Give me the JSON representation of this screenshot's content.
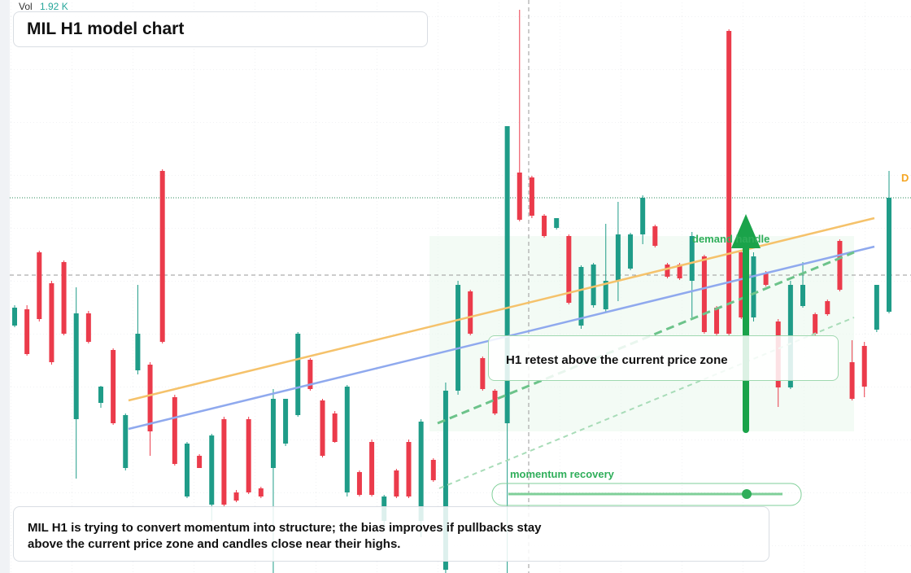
{
  "chart_data": {
    "type": "candlestick",
    "title": "MIL H1 model chart",
    "volume_label": "Vol",
    "volume_value": "1.92 K",
    "edge_label": "D",
    "up_color": "#1f9c88",
    "down_color": "#eb3b4b",
    "ylim": [
      0,
      70.4
    ],
    "open": [
      30.4,
      32.4,
      39.4,
      35.6,
      38.2,
      18.9,
      31.9,
      20.9,
      27.4,
      12.9,
      24.9,
      25.6,
      49.4,
      21.6,
      9.4,
      14.4,
      8.4,
      18.9,
      9.9,
      18.9,
      10.4,
      12.9,
      15.9,
      19.4,
      26.2,
      21.2,
      19.6,
      9.9,
      12.4,
      16.1,
      6.4,
      12.6,
      16.1,
      6.4,
      13.9,
      0.4,
      22.4,
      34.6,
      26.4,
      22.4,
      18.4,
      49.2,
      48.6,
      43.9,
      42.4,
      41.4,
      30.4,
      32.9,
      32.4,
      35.9,
      37.4,
      41.6,
      42.6,
      37.9,
      37.9,
      35.9,
      38.9,
      32.6,
      66.6,
      39.4,
      31.4,
      36.9,
      30.9,
      22.8,
      32.8,
      31.8,
      33.4,
      40.8,
      25.9,
      27.9,
      29.9,
      32.1
    ],
    "high": [
      32.9,
      32.9,
      39.6,
      35.9,
      38.4,
      35.1,
      32.2,
      23.0,
      27.6,
      19.6,
      35.4,
      25.9,
      49.6,
      21.9,
      16.1,
      14.6,
      17.1,
      19.2,
      10.2,
      19.2,
      10.6,
      22.6,
      21.4,
      29.6,
      26.4,
      21.4,
      19.9,
      23.1,
      12.6,
      16.4,
      9.6,
      12.8,
      16.4,
      18.9,
      14.1,
      23.4,
      35.9,
      34.8,
      26.6,
      22.6,
      54.9,
      69.2,
      48.8,
      44.1,
      43.6,
      41.6,
      37.8,
      38.1,
      42.9,
      45.6,
      41.8,
      46.4,
      42.8,
      38.1,
      38.1,
      41.9,
      39.1,
      32.8,
      66.8,
      39.6,
      39.4,
      37.1,
      31.2,
      35.9,
      38.2,
      32.0,
      33.6,
      41.0,
      28.6,
      28.4,
      35.4,
      49.4
    ],
    "low": [
      30.2,
      26.7,
      30.9,
      25.6,
      29.2,
      11.6,
      28.2,
      20.3,
      18.2,
      12.6,
      24.4,
      14.4,
      28.2,
      13.2,
      9.2,
      12.9,
      6.4,
      8.2,
      8.7,
      9.7,
      9.2,
      0,
      15.6,
      19.2,
      22.4,
      14.2,
      16.0,
      9.4,
      9.4,
      9.4,
      5.4,
      9.2,
      9.2,
      4.4,
      11.2,
      0,
      21.9,
      29.2,
      22.4,
      19.4,
      0,
      43.2,
      43.6,
      41.2,
      42.2,
      33.0,
      30.0,
      32.6,
      32.0,
      33.4,
      37.2,
      40.4,
      40.0,
      36.2,
      36.0,
      31.4,
      29.4,
      29.2,
      29.2,
      31.2,
      30.9,
      35.2,
      20.4,
      22.6,
      32.6,
      29.2,
      31.6,
      34.6,
      21.2,
      21.6,
      29.6,
      31.9
    ],
    "close": [
      32.6,
      26.9,
      31.2,
      25.9,
      29.4,
      31.9,
      28.4,
      22.9,
      18.4,
      19.4,
      29.4,
      17.4,
      28.4,
      13.4,
      15.9,
      12.9,
      16.9,
      8.4,
      8.9,
      9.9,
      9.4,
      21.4,
      21.4,
      29.4,
      22.6,
      14.4,
      16.1,
      22.9,
      9.6,
      9.6,
      9.4,
      9.4,
      9.4,
      18.6,
      11.4,
      22.4,
      35.4,
      29.4,
      22.6,
      19.6,
      54.9,
      43.4,
      43.9,
      41.4,
      43.6,
      33.2,
      37.6,
      37.9,
      35.9,
      41.6,
      41.6,
      46.1,
      40.2,
      36.4,
      36.2,
      41.4,
      29.6,
      29.4,
      29.4,
      31.4,
      38.9,
      35.4,
      22.8,
      35.4,
      35.4,
      29.4,
      31.8,
      34.8,
      21.4,
      22.9,
      35.4,
      46.1
    ],
    "annotations": [
      "demand handle",
      "H1 retest above the current price zone",
      "momentum recovery"
    ],
    "summary": "MIL H1 is trying to convert momentum into structure; the bias improves if pullbacks stay above the current price zone and candles close near their highs."
  }
}
